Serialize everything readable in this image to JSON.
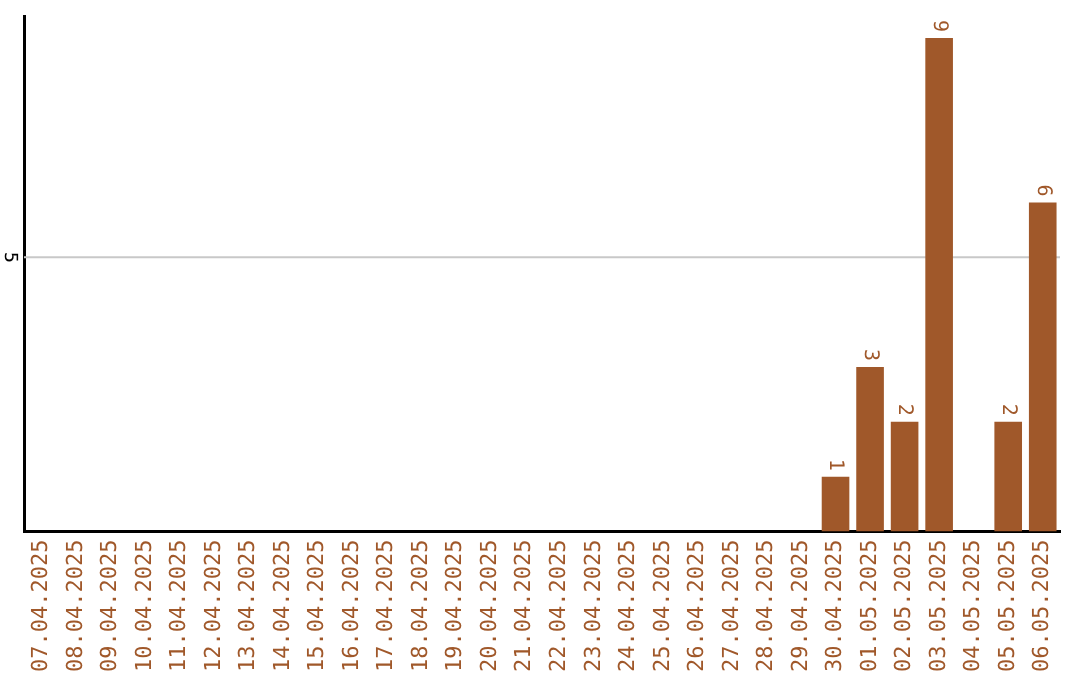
{
  "chart_data": {
    "type": "bar",
    "categories": [
      "07.04.2025",
      "08.04.2025",
      "09.04.2025",
      "10.04.2025",
      "11.04.2025",
      "12.04.2025",
      "13.04.2025",
      "14.04.2025",
      "15.04.2025",
      "16.04.2025",
      "17.04.2025",
      "18.04.2025",
      "19.04.2025",
      "20.04.2025",
      "21.04.2025",
      "22.04.2025",
      "23.04.2025",
      "24.04.2025",
      "25.04.2025",
      "26.04.2025",
      "27.04.2025",
      "28.04.2025",
      "29.04.2025",
      "30.04.2025",
      "01.05.2025",
      "02.05.2025",
      "03.05.2025",
      "04.05.2025",
      "05.05.2025",
      "06.05.2025"
    ],
    "values": [
      null,
      null,
      null,
      null,
      null,
      null,
      null,
      null,
      null,
      null,
      null,
      null,
      null,
      null,
      null,
      null,
      null,
      null,
      null,
      null,
      null,
      null,
      null,
      1,
      3,
      2,
      9,
      null,
      2,
      6
    ],
    "data_labels": true,
    "color": "#a0582a",
    "ylim": [
      0,
      9.4
    ],
    "ref_lines": [
      {
        "axis": "y",
        "value": 5,
        "label": "5",
        "color": "#c8c8c8"
      }
    ],
    "legend": false
  }
}
